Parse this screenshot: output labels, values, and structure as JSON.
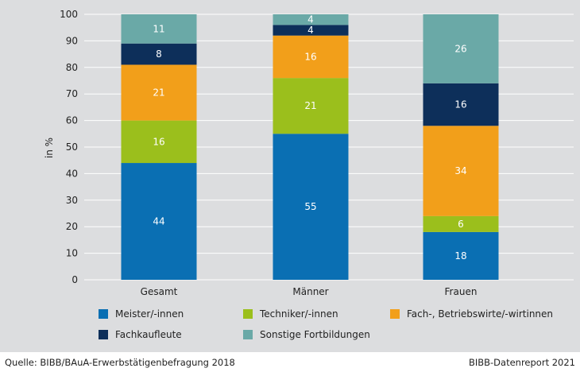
{
  "chart_data": {
    "type": "bar",
    "stacked": true,
    "categories": [
      "Gesamt",
      "Männer",
      "Frauen"
    ],
    "ylabel": "in %",
    "ylim": [
      0,
      100
    ],
    "yticks": [
      0,
      10,
      20,
      30,
      40,
      50,
      60,
      70,
      80,
      90,
      100
    ],
    "grid": true,
    "series": [
      {
        "name": "Meister/-innen",
        "color": "#0a6fb3",
        "values": [
          44,
          55,
          18
        ]
      },
      {
        "name": "Techniker/-innen",
        "color": "#9bbf1c",
        "values": [
          16,
          21,
          6
        ]
      },
      {
        "name": "Fach-, Betriebswirte/-wirtinnen",
        "color": "#f29f1a",
        "values": [
          21,
          16,
          34
        ]
      },
      {
        "name": "Fachkaufleute",
        "color": "#0d2f5a",
        "values": [
          8,
          4,
          16
        ]
      },
      {
        "name": "Sonstige Fortbildungen",
        "color": "#6aa9a7",
        "values": [
          11,
          4,
          26
        ]
      }
    ]
  },
  "footer": {
    "source": "Quelle: BIBB/BAuA-Erwerbstätigenbefragung 2018",
    "report": "BIBB-Datenreport 2021"
  }
}
